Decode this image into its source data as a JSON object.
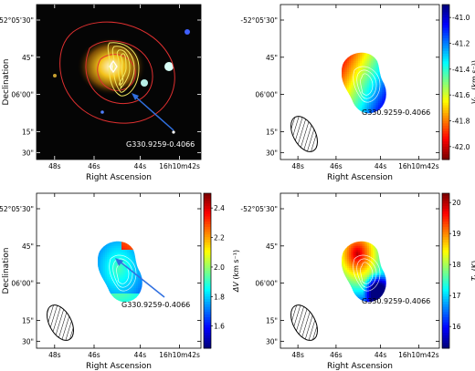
{
  "chart_data": [
    {
      "type": "heatmap",
      "panel": "top-left",
      "description_shown": "three-colour composite image with contours",
      "xlabel": "Right Ascension",
      "ylabel": "Declination",
      "xticks": [
        "48s",
        "46s",
        "44s",
        "16h10m42s"
      ],
      "yticks": [
        "-52°05'30\"",
        "45\"",
        "06'00\"",
        "15\"",
        "30\""
      ],
      "annotation": "G330.9259-0.4066",
      "contour_colors": {
        "outer": "#e03030",
        "inner": "#f2e860"
      },
      "beam_shown": false
    },
    {
      "type": "heatmap",
      "panel": "top-right",
      "xlabel": "Right Ascension",
      "ylabel": "Declination",
      "xticks": [
        "48s",
        "46s",
        "44s",
        "16h10m42s"
      ],
      "yticks": [
        "-52°05'30\"",
        "45\"",
        "06'00\"",
        "15\"",
        "30\""
      ],
      "annotation": "G330.9259-0.4066",
      "colorbar": {
        "label": "V_lsr (km s⁻¹)",
        "label_main": "V",
        "label_sub": "lsr",
        "label_unit": "(km s⁻¹)",
        "range": [
          -42.1,
          -40.9
        ],
        "ticks": [
          "-41.0",
          "-41.2",
          "-41.4",
          "-41.6",
          "-41.8",
          "-42.0"
        ],
        "colormap": "jet_reversed"
      },
      "beam_shown": true
    },
    {
      "type": "heatmap",
      "panel": "bottom-left",
      "xlabel": "Right Ascension",
      "ylabel": "Declination",
      "xticks": [
        "48s",
        "46s",
        "44s",
        "16h10m42s"
      ],
      "yticks": [
        "-52°05'30\"",
        "45\"",
        "06'00\"",
        "15\"",
        "30\""
      ],
      "annotation": "G330.9259-0.4066",
      "colorbar": {
        "label": "ΔV (km s⁻¹)",
        "label_main": "ΔV",
        "label_sub": "",
        "label_unit": "(km s⁻¹)",
        "range": [
          1.45,
          2.5
        ],
        "ticks": [
          "2.4",
          "2.2",
          "2.0",
          "1.8",
          "1.6"
        ],
        "colormap": "jet"
      },
      "beam_shown": true
    },
    {
      "type": "heatmap",
      "panel": "bottom-right",
      "xlabel": "Right Ascension",
      "ylabel": "Declination",
      "xticks": [
        "48s",
        "46s",
        "44s",
        "16h10m42s"
      ],
      "yticks": [
        "-52°05'30\"",
        "45\"",
        "06'00\"",
        "15\"",
        "30\""
      ],
      "annotation": "G330.9259-0.4066",
      "colorbar": {
        "label": "T_k (K)",
        "label_main": "T",
        "label_sub": "k",
        "label_unit": "(K)",
        "range": [
          15.3,
          20.3
        ],
        "ticks": [
          "20",
          "19",
          "18",
          "17",
          "16"
        ],
        "colormap": "jet"
      },
      "beam_shown": true
    }
  ]
}
